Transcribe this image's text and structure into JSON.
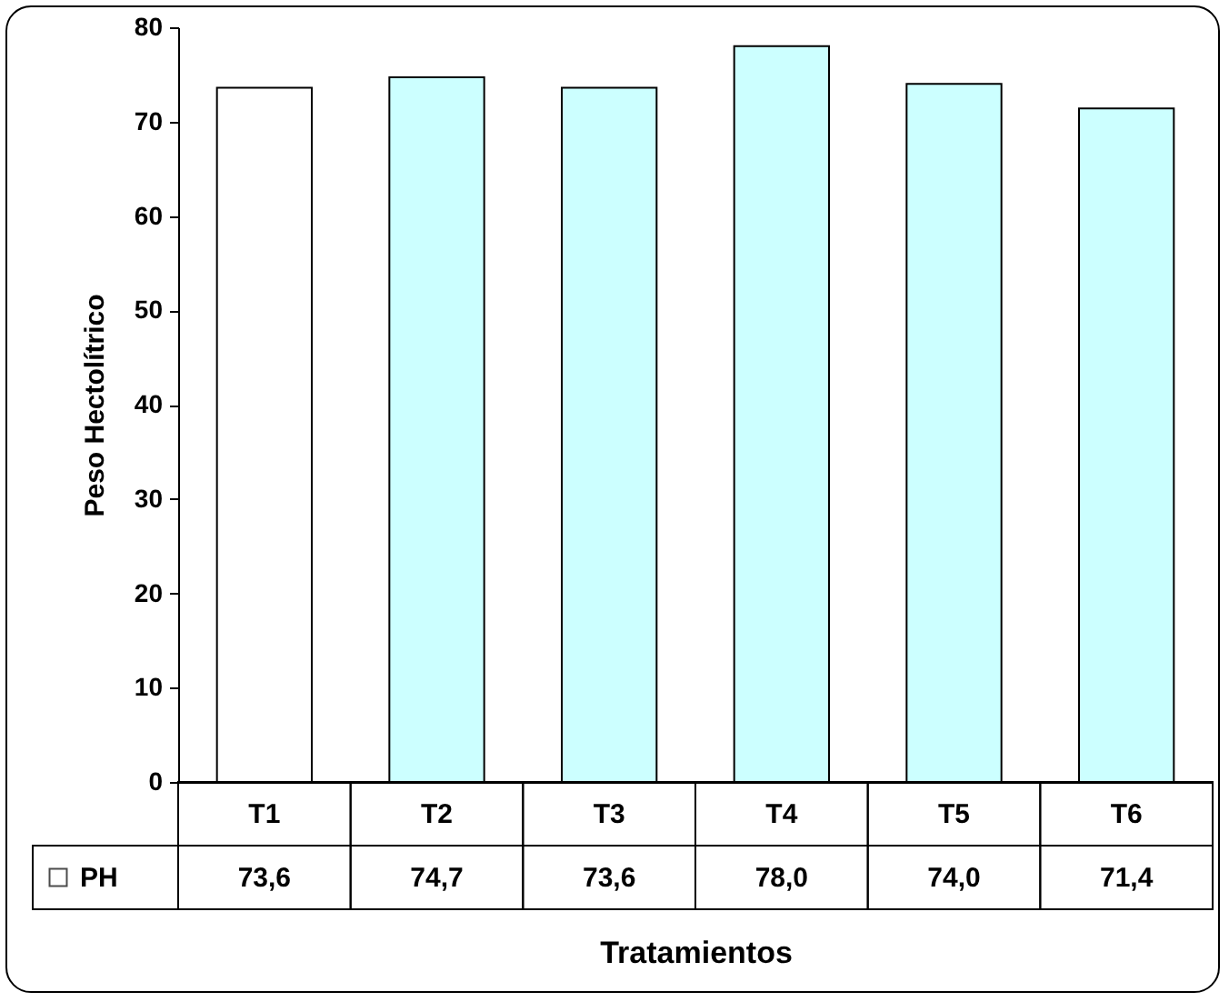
{
  "chart_data": {
    "type": "bar",
    "xlabel": "Tratamientos",
    "ylabel": "Peso Hectolítrico",
    "categories": [
      "T1",
      "T2",
      "T3",
      "T4",
      "T5",
      "T6"
    ],
    "series": [
      {
        "name": "PH",
        "color": "#ffffff",
        "colors": [
          "#ffffff",
          "#ccffff",
          "#ccffff",
          "#ccffff",
          "#ccffff",
          "#ccffff"
        ],
        "values": [
          73.6,
          74.7,
          73.6,
          78.0,
          74.0,
          71.4
        ],
        "value_labels": [
          "73,6",
          "74,7",
          "73,6",
          "78,0",
          "74,0",
          "71,4"
        ]
      }
    ],
    "ylim": [
      0,
      80
    ],
    "yticks": [
      0,
      10,
      20,
      30,
      40,
      50,
      60,
      70,
      80
    ],
    "grid": false,
    "legend": "bottom left"
  }
}
